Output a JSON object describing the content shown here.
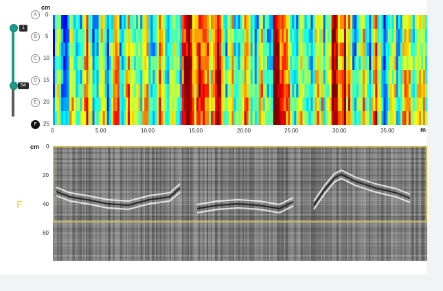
{
  "colors": {
    "accent": "#1c9a8e",
    "highlight_box": "#e0c33a",
    "marker": "#f0d04a"
  },
  "top_chart": {
    "unit_y": "cm",
    "unit_x": "m",
    "y_ticks": [
      "0",
      "5",
      "10",
      "15",
      "20",
      "25"
    ],
    "x_ticks": [
      "0",
      "5.00",
      "10.00",
      "15.00",
      "20.00",
      "25.00",
      "30.00",
      "35.00"
    ],
    "layer_buttons": [
      "A",
      "B",
      "C",
      "D",
      "E",
      "F"
    ],
    "active_layer": "F"
  },
  "depth_slider": {
    "min_label": "1",
    "max_label": "54"
  },
  "bottom_chart": {
    "unit_y": "cm",
    "y_ticks": [
      "0",
      "20",
      "40",
      "60"
    ],
    "side_marker": "F"
  },
  "chart_data": [
    {
      "type": "heatmap",
      "description_axis": "depth vs distance",
      "ylabel": "cm",
      "xlabel": "m",
      "x_range": [
        0,
        39
      ],
      "y_range": [
        0,
        25
      ],
      "colormap": "jet",
      "hot_zones_m": [
        [
          13.5,
          17.5
        ],
        [
          23.0,
          24.5
        ],
        [
          29.0,
          30.5
        ]
      ]
    },
    {
      "type": "heatmap",
      "colormap": "grayscale",
      "ylabel": "cm",
      "y_range": [
        0,
        75
      ],
      "selection_depth_cm": [
        0,
        52
      ]
    }
  ]
}
